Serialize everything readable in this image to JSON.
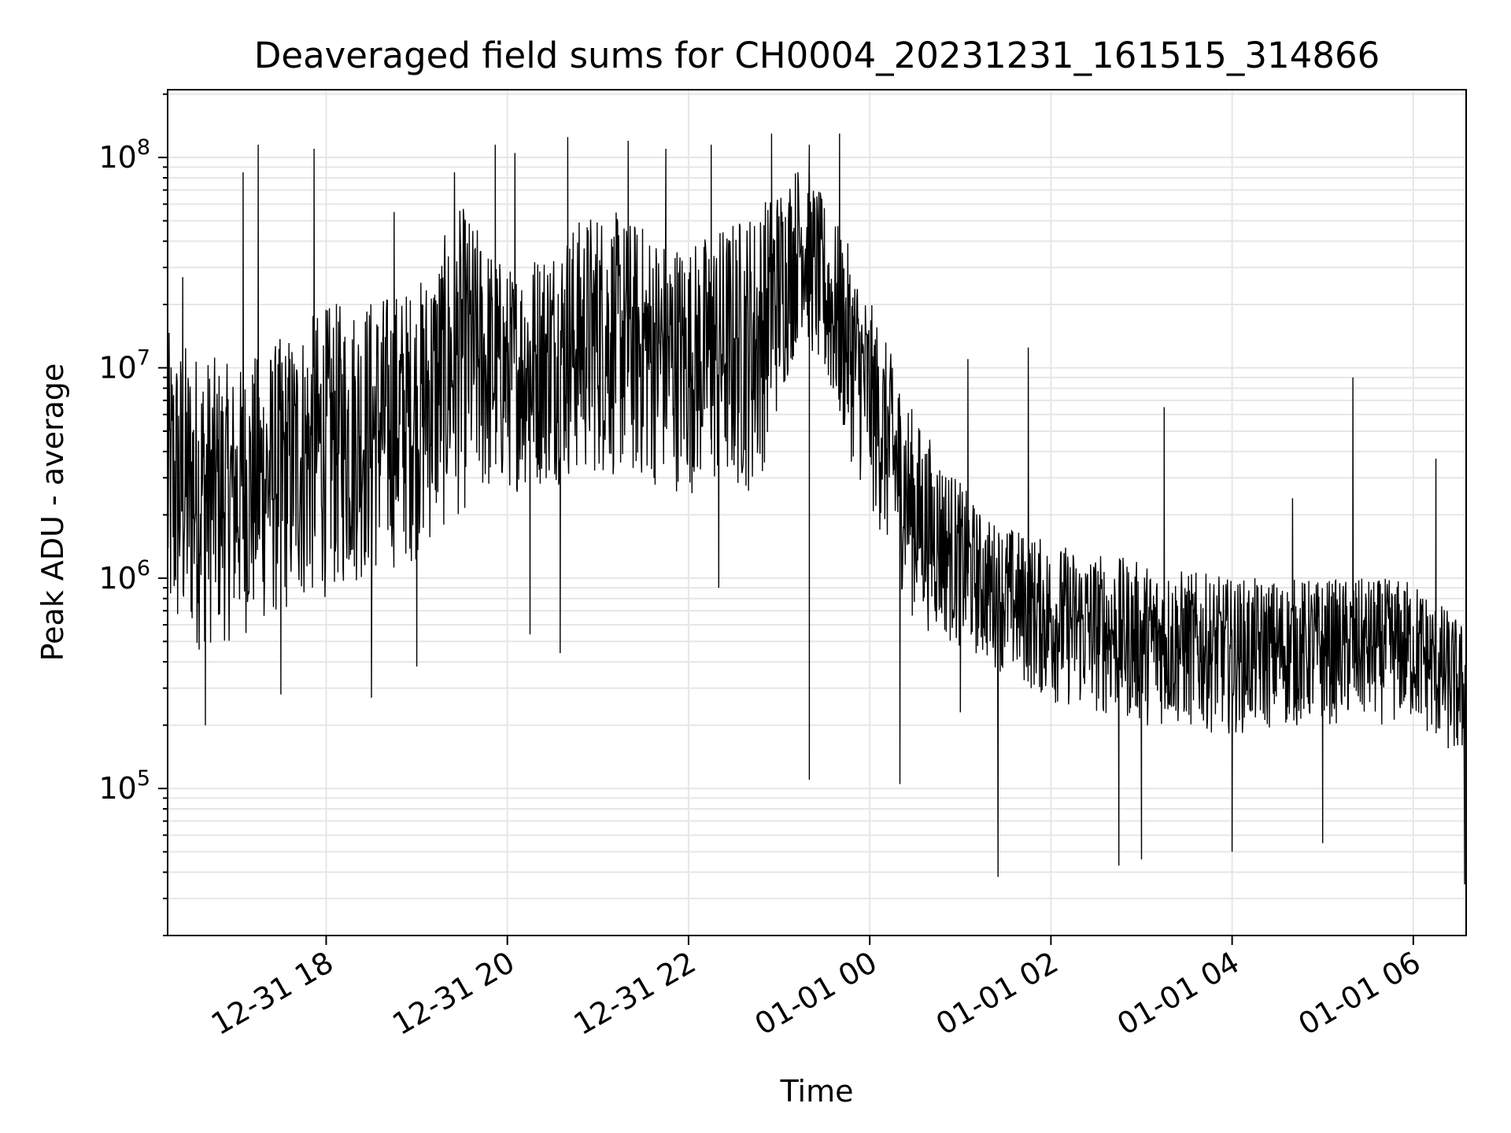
{
  "chart_data": {
    "type": "line",
    "title": "Deaveraged field sums for CH0004_20231231_161515_314866",
    "xlabel": "Time",
    "ylabel": "Peak ADU - average",
    "yscale": "log",
    "grid": true,
    "legend": "none",
    "line_color": "#000000",
    "grid_color": "#e6e6e6",
    "xlim": [
      "2023-12-31 16:15",
      "2024-01-01 06:35"
    ],
    "ylim": [
      20000,
      210000000
    ],
    "x_ticks": [
      {
        "value": "2023-12-31 18:00",
        "label": "12-31 18"
      },
      {
        "value": "2023-12-31 20:00",
        "label": "12-31 20"
      },
      {
        "value": "2023-12-31 22:00",
        "label": "12-31 22"
      },
      {
        "value": "2024-01-01 00:00",
        "label": "01-01 00"
      },
      {
        "value": "2024-01-01 02:00",
        "label": "01-01 02"
      },
      {
        "value": "2024-01-01 04:00",
        "label": "01-01 04"
      },
      {
        "value": "2024-01-01 06:00",
        "label": "01-01 06"
      }
    ],
    "y_ticks": [
      {
        "value": 100000,
        "base": "10",
        "exp": "5"
      },
      {
        "value": 1000000,
        "base": "10",
        "exp": "6"
      },
      {
        "value": 10000000,
        "base": "10",
        "exp": "7"
      },
      {
        "value": 100000000,
        "base": "10",
        "exp": "8"
      }
    ],
    "series": [
      {
        "envelope": {
          "x": [
            "2023-12-31 16:15",
            "2023-12-31 17:00",
            "2023-12-31 18:00",
            "2023-12-31 19:00",
            "2023-12-31 19:30",
            "2023-12-31 20:00",
            "2023-12-31 21:00",
            "2023-12-31 22:00",
            "2023-12-31 22:45",
            "2023-12-31 23:15",
            "2023-12-31 23:45",
            "2024-01-01 00:30",
            "2024-01-01 01:15",
            "2024-01-01 02:00",
            "2024-01-01 03:00",
            "2024-01-01 04:00",
            "2024-01-01 05:00",
            "2024-01-01 06:00",
            "2024-01-01 06:35"
          ],
          "low": [
            400000,
            500000,
            800000,
            1200000,
            2000000,
            2500000,
            3000000,
            2500000,
            2500000,
            15000000,
            4000000,
            600000,
            400000,
            250000,
            200000,
            180000,
            200000,
            200000,
            120000
          ],
          "high": [
            15000000,
            10000000,
            20000000,
            25000000,
            60000000,
            30000000,
            60000000,
            40000000,
            60000000,
            100000000,
            40000000,
            6000000,
            2000000,
            1500000,
            1200000,
            1000000,
            1000000,
            1000000,
            600000
          ]
        },
        "spikes_high": [
          {
            "x": "2023-12-31 16:25",
            "y": 27000000
          },
          {
            "x": "2023-12-31 17:05",
            "y": 85000000
          },
          {
            "x": "2023-12-31 17:15",
            "y": 115000000
          },
          {
            "x": "2023-12-31 17:52",
            "y": 110000000
          },
          {
            "x": "2023-12-31 18:45",
            "y": 55000000
          },
          {
            "x": "2023-12-31 19:25",
            "y": 85000000
          },
          {
            "x": "2023-12-31 19:52",
            "y": 115000000
          },
          {
            "x": "2023-12-31 20:05",
            "y": 105000000
          },
          {
            "x": "2023-12-31 20:40",
            "y": 125000000
          },
          {
            "x": "2023-12-31 21:20",
            "y": 120000000
          },
          {
            "x": "2023-12-31 21:45",
            "y": 110000000
          },
          {
            "x": "2023-12-31 22:15",
            "y": 115000000
          },
          {
            "x": "2023-12-31 22:55",
            "y": 130000000
          },
          {
            "x": "2023-12-31 23:20",
            "y": 115000000
          },
          {
            "x": "2023-12-31 23:40",
            "y": 130000000
          },
          {
            "x": "2024-01-01 00:15",
            "y": 10000000
          },
          {
            "x": "2024-01-01 01:05",
            "y": 11000000
          },
          {
            "x": "2024-01-01 01:45",
            "y": 12500000
          },
          {
            "x": "2024-01-01 03:15",
            "y": 6500000
          },
          {
            "x": "2024-01-01 04:40",
            "y": 2400000
          },
          {
            "x": "2024-01-01 05:20",
            "y": 9000000
          },
          {
            "x": "2024-01-01 06:15",
            "y": 3700000
          }
        ],
        "spikes_low": [
          {
            "x": "2023-12-31 16:40",
            "y": 200000
          },
          {
            "x": "2023-12-31 17:30",
            "y": 280000
          },
          {
            "x": "2023-12-31 18:30",
            "y": 270000
          },
          {
            "x": "2023-12-31 19:00",
            "y": 380000
          },
          {
            "x": "2023-12-31 20:15",
            "y": 540000
          },
          {
            "x": "2023-12-31 20:35",
            "y": 440000
          },
          {
            "x": "2023-12-31 22:20",
            "y": 900000
          },
          {
            "x": "2023-12-31 23:20",
            "y": 110000
          },
          {
            "x": "2024-01-01 00:20",
            "y": 105000
          },
          {
            "x": "2024-01-01 01:00",
            "y": 230000
          },
          {
            "x": "2024-01-01 01:25",
            "y": 38000
          },
          {
            "x": "2024-01-01 02:45",
            "y": 43000
          },
          {
            "x": "2024-01-01 03:00",
            "y": 46000
          },
          {
            "x": "2024-01-01 04:00",
            "y": 50000
          },
          {
            "x": "2024-01-01 05:00",
            "y": 55000
          },
          {
            "x": "2024-01-01 06:34",
            "y": 35000
          }
        ]
      }
    ]
  }
}
